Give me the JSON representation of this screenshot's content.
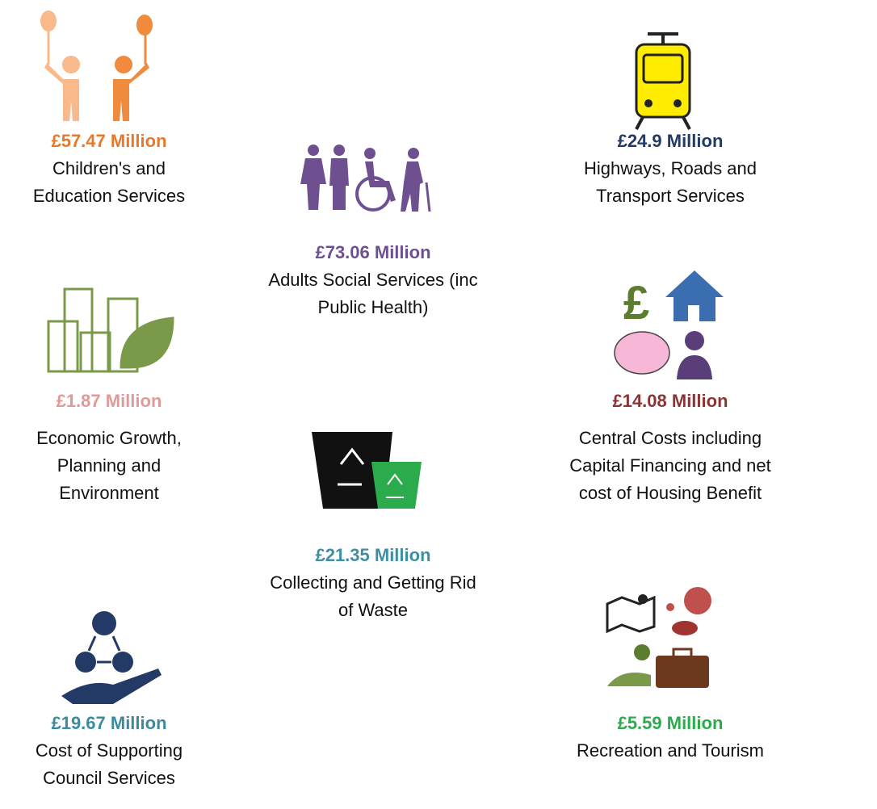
{
  "items": [
    {
      "amount": "£57.47 Million",
      "lines": [
        "Children's and",
        "Education Services"
      ],
      "color": "#e8782a"
    },
    {
      "amount": "£73.06 Million",
      "lines": [
        "Adults Social Services (inc",
        "Public Health)"
      ],
      "color": "#6e5090"
    },
    {
      "amount": "£24.9 Million",
      "lines": [
        "Highways, Roads and",
        "Transport Services"
      ],
      "color": "#243a66"
    },
    {
      "amount": "£1.87 Million",
      "lines": [
        "Economic Growth,",
        "Planning and",
        "Environment"
      ],
      "color": "#e09a9a"
    },
    {
      "amount": "£14.08 Million",
      "lines": [
        "Central Costs including",
        "Capital Financing and net",
        "cost of Housing Benefit"
      ],
      "color": "#8a3535"
    },
    {
      "amount": "£21.35 Million",
      "lines": [
        "Collecting and Getting Rid",
        "of Waste"
      ],
      "color": "#3f8ea3"
    },
    {
      "amount": "£19.67 Million",
      "lines": [
        "Cost of Supporting",
        "Council Services"
      ],
      "color": "#3a8b9e"
    },
    {
      "amount": "£5.59 Million",
      "lines": [
        "Recreation and Tourism"
      ],
      "color": "#2bab4c"
    }
  ]
}
